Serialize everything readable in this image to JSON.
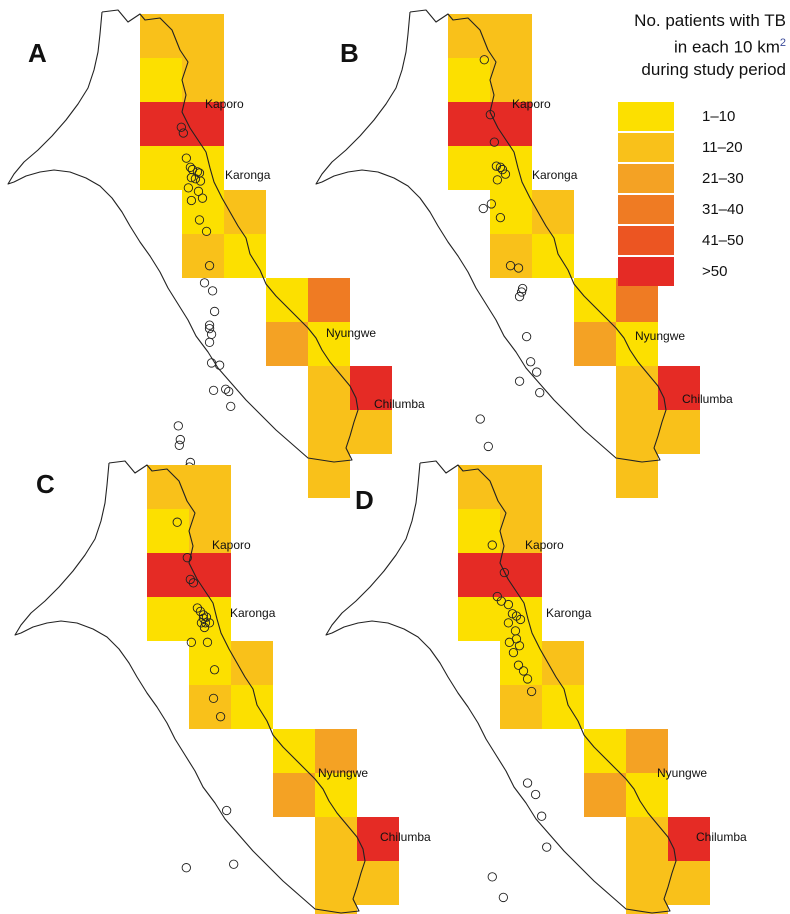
{
  "legend": {
    "title_line1": "No. patients with TB",
    "title_line2": "in each 10 km",
    "title_sup": "2",
    "title_line3": "during study period",
    "classes": [
      {
        "label": "1–10",
        "color": "#FCE000"
      },
      {
        "label": "11–20",
        "color": "#F9C11A"
      },
      {
        "label": "21–30",
        "color": "#F4A224"
      },
      {
        "label": "31–40",
        "color": "#EF7B23"
      },
      {
        "label": "41–50",
        "color": "#EC5522"
      },
      {
        "label": ">50",
        "color": "#E52B25"
      }
    ]
  },
  "places": {
    "kaporo": "Kaporo",
    "karonga": "Karonga",
    "nyungwe": "Nyungwe",
    "chilumba": "Chilumba"
  },
  "panels": [
    {
      "letter": "A",
      "cells": [
        1,
        1,
        0,
        1,
        5,
        5,
        0,
        0,
        0,
        1,
        1,
        0,
        0,
        3,
        2,
        0,
        1,
        5,
        1,
        1,
        1
      ],
      "patients": [
        [
          0.41,
          0.99
        ],
        [
          0.43,
          1.04
        ],
        [
          0.46,
          1.26
        ],
        [
          0.5,
          1.34
        ],
        [
          0.52,
          1.36
        ],
        [
          0.57,
          1.38
        ],
        [
          0.59,
          1.39
        ],
        [
          0.51,
          1.43
        ],
        [
          0.55,
          1.44
        ],
        [
          0.6,
          1.46
        ],
        [
          0.48,
          1.52
        ],
        [
          0.58,
          1.55
        ],
        [
          0.62,
          1.61
        ],
        [
          0.51,
          1.63
        ],
        [
          0.59,
          1.8
        ],
        [
          0.66,
          1.9
        ],
        [
          0.69,
          2.2
        ],
        [
          0.64,
          2.35
        ],
        [
          0.72,
          2.42
        ],
        [
          0.74,
          2.6
        ],
        [
          0.69,
          2.72
        ],
        [
          0.69,
          2.75
        ],
        [
          0.71,
          2.8
        ],
        [
          0.69,
          2.87
        ],
        [
          0.71,
          3.05
        ],
        [
          0.79,
          3.07
        ],
        [
          0.73,
          3.29
        ],
        [
          0.85,
          3.28
        ],
        [
          0.88,
          3.3
        ],
        [
          0.9,
          3.43
        ],
        [
          0.38,
          3.6
        ],
        [
          0.4,
          3.72
        ],
        [
          0.39,
          3.77
        ],
        [
          0.5,
          3.92
        ],
        [
          0.49,
          3.96
        ]
      ]
    },
    {
      "letter": "B",
      "cells": [
        1,
        1,
        0,
        1,
        5,
        5,
        0,
        0,
        0,
        1,
        1,
        0,
        0,
        3,
        2,
        0,
        1,
        5,
        1,
        1,
        1
      ],
      "patients": [
        [
          0.36,
          0.4
        ],
        [
          0.42,
          0.88
        ],
        [
          0.46,
          1.12
        ],
        [
          0.48,
          1.33
        ],
        [
          0.52,
          1.34
        ],
        [
          0.54,
          1.36
        ],
        [
          0.49,
          1.45
        ],
        [
          0.57,
          1.4
        ],
        [
          0.43,
          1.66
        ],
        [
          0.35,
          1.7
        ],
        [
          0.52,
          1.78
        ],
        [
          0.62,
          2.2
        ],
        [
          0.7,
          2.22
        ],
        [
          0.74,
          2.4
        ],
        [
          0.73,
          2.43
        ],
        [
          0.71,
          2.47
        ],
        [
          0.78,
          2.82
        ],
        [
          0.82,
          3.04
        ],
        [
          0.88,
          3.13
        ],
        [
          0.71,
          3.21
        ],
        [
          0.91,
          3.31
        ],
        [
          0.32,
          3.54
        ],
        [
          0.4,
          3.78
        ]
      ]
    },
    {
      "letter": "C",
      "cells": [
        1,
        1,
        0,
        1,
        5,
        5,
        0,
        0,
        0,
        1,
        1,
        0,
        0,
        2,
        2,
        0,
        1,
        5,
        1,
        1,
        1
      ],
      "patients": [
        [
          0.3,
          0.5
        ],
        [
          0.4,
          0.81
        ],
        [
          0.43,
          1.0
        ],
        [
          0.46,
          1.03
        ],
        [
          0.5,
          1.25
        ],
        [
          0.53,
          1.28
        ],
        [
          0.56,
          1.31
        ],
        [
          0.59,
          1.33
        ],
        [
          0.54,
          1.38
        ],
        [
          0.58,
          1.38
        ],
        [
          0.62,
          1.38
        ],
        [
          0.57,
          1.42
        ],
        [
          0.56,
          1.34
        ],
        [
          0.44,
          1.55
        ],
        [
          0.6,
          1.55
        ],
        [
          0.67,
          1.79
        ],
        [
          0.66,
          2.04
        ],
        [
          0.73,
          2.2
        ],
        [
          0.79,
          3.02
        ],
        [
          0.86,
          3.49
        ],
        [
          0.39,
          3.52
        ]
      ]
    },
    {
      "letter": "D",
      "cells": [
        1,
        1,
        0,
        1,
        5,
        5,
        0,
        0,
        0,
        1,
        1,
        0,
        0,
        2,
        2,
        0,
        1,
        5,
        1,
        1,
        1
      ],
      "patients": [
        [
          0.34,
          0.7
        ],
        [
          0.46,
          0.94
        ],
        [
          0.39,
          1.15
        ],
        [
          0.43,
          1.19
        ],
        [
          0.5,
          1.22
        ],
        [
          0.54,
          1.3
        ],
        [
          0.58,
          1.32
        ],
        [
          0.62,
          1.35
        ],
        [
          0.5,
          1.38
        ],
        [
          0.57,
          1.45
        ],
        [
          0.51,
          1.55
        ],
        [
          0.58,
          1.52
        ],
        [
          0.61,
          1.58
        ],
        [
          0.55,
          1.64
        ],
        [
          0.6,
          1.75
        ],
        [
          0.65,
          1.8
        ],
        [
          0.69,
          1.87
        ],
        [
          0.73,
          1.98
        ],
        [
          0.69,
          2.78
        ],
        [
          0.77,
          2.88
        ],
        [
          0.83,
          3.07
        ],
        [
          0.88,
          3.34
        ],
        [
          0.34,
          3.6
        ],
        [
          0.45,
          3.78
        ]
      ]
    }
  ]
}
